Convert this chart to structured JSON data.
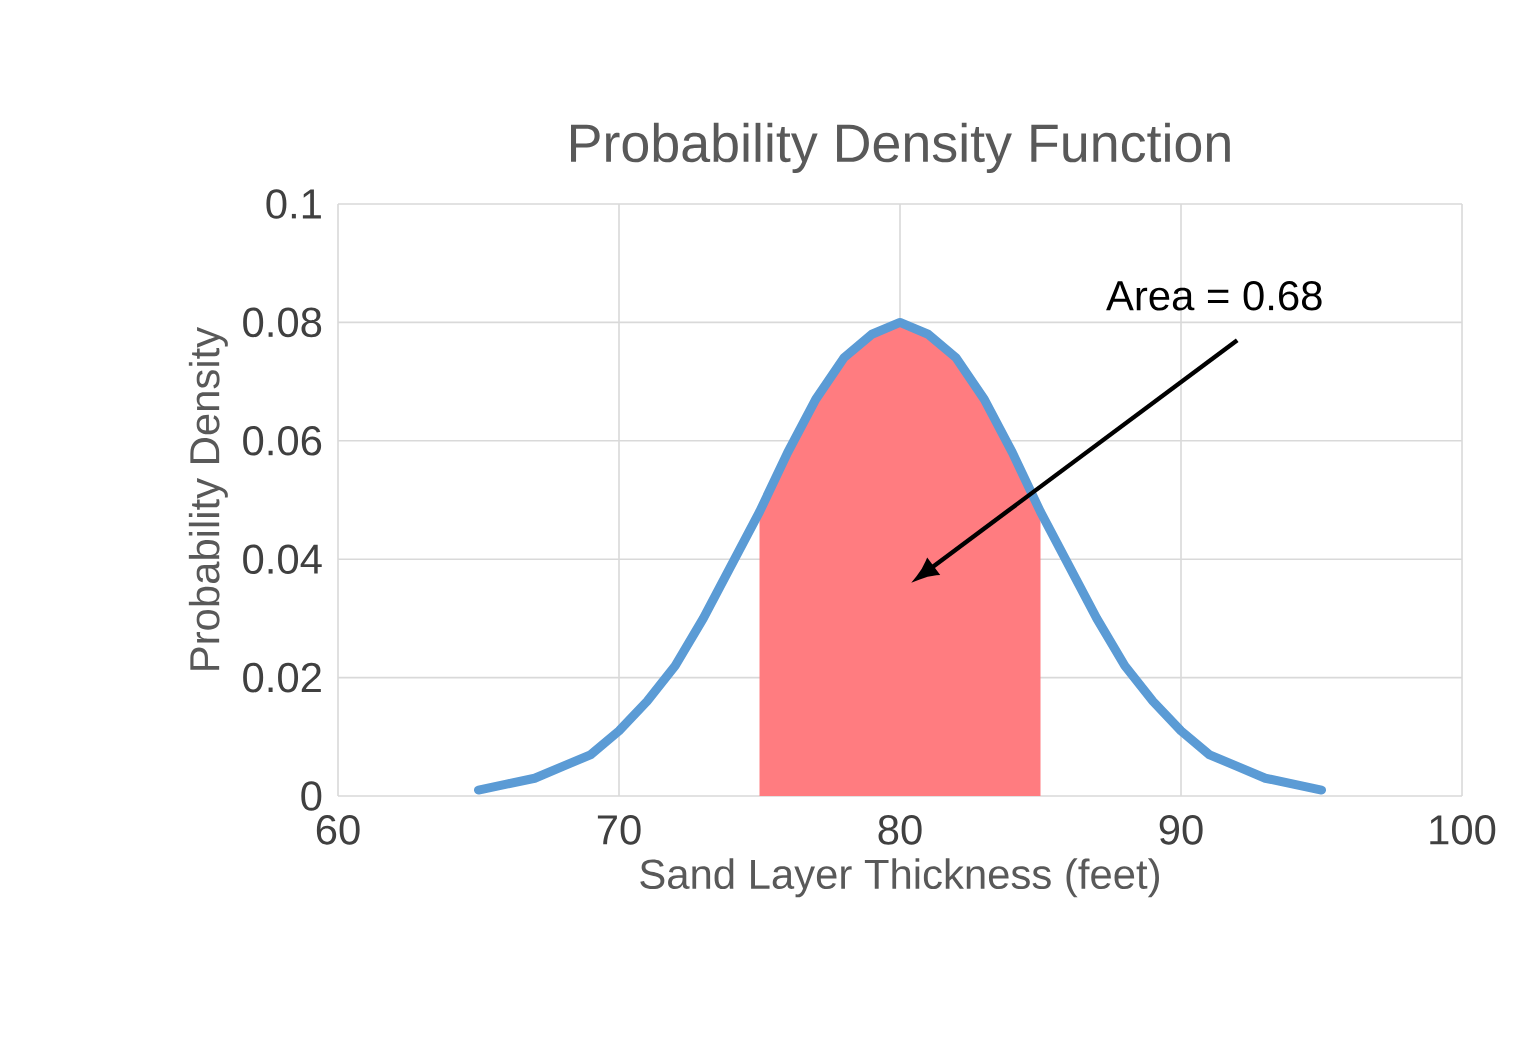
{
  "chart_data": {
    "type": "line",
    "title": "Probability Density Function",
    "xlabel": "Sand Layer Thickness (feet)",
    "ylabel": "Probability Density",
    "series": [
      {
        "type": "area",
        "color": "#ff7c80",
        "x": [
          75,
          76,
          77,
          78,
          79,
          80,
          81,
          82,
          83,
          84,
          85
        ],
        "values": [
          0.048,
          0.058,
          0.067,
          0.074,
          0.078,
          0.08,
          0.078,
          0.074,
          0.067,
          0.058,
          0.048
        ]
      },
      {
        "color": "#5b9bd5",
        "x": [
          65,
          66,
          67,
          68,
          69,
          70,
          71,
          72,
          73,
          74,
          75,
          76,
          77,
          78,
          79,
          80,
          81,
          82,
          83,
          84,
          85,
          86,
          87,
          88,
          89,
          90,
          91,
          92,
          93,
          94,
          95
        ],
        "values": [
          0.001,
          0.002,
          0.003,
          0.005,
          0.007,
          0.011,
          0.016,
          0.022,
          0.03,
          0.039,
          0.048,
          0.058,
          0.067,
          0.074,
          0.078,
          0.08,
          0.078,
          0.074,
          0.067,
          0.058,
          0.048,
          0.039,
          0.03,
          0.022,
          0.016,
          0.011,
          0.007,
          0.005,
          0.003,
          0.002,
          0.001
        ]
      }
    ],
    "xlim": [
      60,
      100
    ],
    "xticks": [
      60,
      70,
      80,
      90,
      100
    ],
    "ylim": [
      0,
      0.1
    ],
    "yticks": [
      0,
      0.02,
      0.04,
      0.06,
      0.08,
      0.1
    ],
    "grid": true,
    "marker": "none",
    "line_style": "solid",
    "annotations": [
      "Area = 0.68"
    ]
  }
}
